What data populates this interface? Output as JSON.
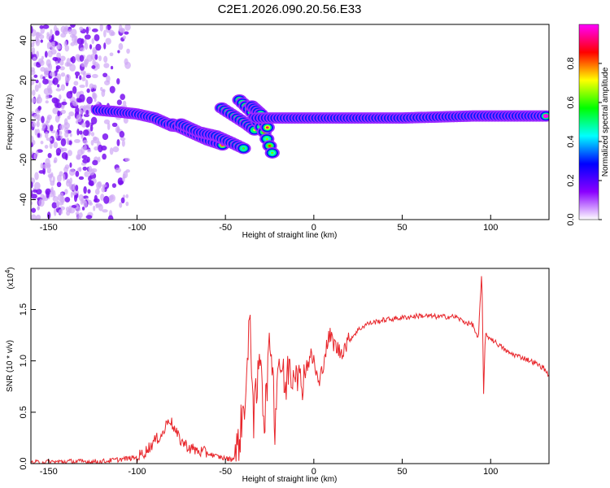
{
  "title": "C2E1.2026.090.20.56.E33",
  "colors": {
    "snr_line": "#e8262b",
    "axis": "#000000",
    "background": "#ffffff"
  },
  "chart_data": [
    {
      "type": "heatmap",
      "name": "spectrogram",
      "xlabel": "Height of straight line (km)",
      "ylabel": "Frequency (Hz)",
      "xlim": [
        -160,
        133
      ],
      "ylim": [
        -50,
        48
      ],
      "x_ticks": [
        -150,
        -100,
        -50,
        0,
        50,
        100
      ],
      "x_tick_labels": [
        "-150",
        "-100",
        "-50",
        "0",
        "50",
        "100"
      ],
      "y_ticks": [
        -40,
        -20,
        0,
        20,
        40
      ],
      "y_tick_labels": [
        "-40",
        "-20",
        "0",
        "20",
        "40"
      ],
      "noise_region_km": [
        -160,
        -105
      ],
      "tracks": [
        {
          "name": "main-echo-left",
          "points": [
            [
              -122,
              5
            ],
            [
              -110,
              4
            ],
            [
              -100,
              3
            ],
            [
              -90,
              1
            ],
            [
              -80,
              -3
            ],
            [
              -70,
              -4
            ]
          ]
        },
        {
          "name": "descending-trail-1",
          "points": [
            [
              -80,
              -2
            ],
            [
              -70,
              -6
            ],
            [
              -60,
              -10
            ],
            [
              -50,
              -13
            ]
          ]
        },
        {
          "name": "descending-trail-2",
          "points": [
            [
              -75,
              -2
            ],
            [
              -65,
              -6
            ],
            [
              -55,
              -8
            ],
            [
              -45,
              -12
            ],
            [
              -38,
              -15
            ]
          ]
        },
        {
          "name": "short-streak-1",
          "points": [
            [
              -52,
              6
            ],
            [
              -45,
              2
            ],
            [
              -38,
              -2
            ],
            [
              -32,
              -6
            ]
          ]
        },
        {
          "name": "short-streak-2",
          "points": [
            [
              -42,
              10
            ],
            [
              -35,
              4
            ],
            [
              -28,
              -6
            ],
            [
              -22,
              -20
            ]
          ]
        },
        {
          "name": "short-streak-3",
          "points": [
            [
              -35,
              7
            ],
            [
              -30,
              3
            ],
            [
              -25,
              -6
            ]
          ]
        },
        {
          "name": "steady-return",
          "points": [
            [
              -32,
              1
            ],
            [
              0,
              1
            ],
            [
              50,
              1
            ],
            [
              90,
              2
            ],
            [
              133,
              2
            ]
          ]
        }
      ],
      "colorbar": {
        "label": "Normalized spectral amplitude",
        "range": [
          0,
          1
        ],
        "ticks": [
          0.0,
          0.2,
          0.4,
          0.6,
          0.8
        ],
        "tick_labels": [
          "0.0",
          "0.2",
          "0.4",
          "0.6",
          "0.8"
        ],
        "colormap": [
          "#ffffff",
          "#8a00ff",
          "#0000ff",
          "#00ffff",
          "#00ff00",
          "#ffff00",
          "#ff0000",
          "#ff00ff"
        ]
      }
    },
    {
      "type": "line",
      "name": "snr",
      "xlabel": "Height of straight line (km)",
      "ylabel": "SNR (10 * v/v)",
      "multiplier_label": "(x10",
      "multiplier_exponent": "4",
      "multiplier_suffix": ")",
      "xlim": [
        -160,
        133
      ],
      "ylim": [
        0,
        1.9
      ],
      "x_ticks": [
        -150,
        -100,
        -50,
        0,
        50,
        100
      ],
      "x_tick_labels": [
        "-150",
        "-100",
        "-50",
        "0",
        "50",
        "100"
      ],
      "y_ticks": [
        0.0,
        0.5,
        1.0,
        1.5
      ],
      "y_tick_labels": [
        "0.0",
        "0.5",
        "1.0",
        "1.5"
      ],
      "series": [
        {
          "name": "SNR",
          "x": [
            -160,
            -140,
            -120,
            -110,
            -100,
            -95,
            -90,
            -85,
            -82,
            -80,
            -78,
            -75,
            -70,
            -65,
            -60,
            -55,
            -50,
            -46,
            -43,
            -40,
            -38,
            -36,
            -34,
            -32,
            -30,
            -28,
            -26,
            -24,
            -22,
            -20,
            -18,
            -16,
            -14,
            -12,
            -10,
            -8,
            -5,
            -2,
            0,
            3,
            6,
            9,
            12,
            15,
            20,
            25,
            30,
            40,
            50,
            60,
            70,
            80,
            85,
            90,
            93,
            95,
            96,
            97,
            100,
            105,
            110,
            115,
            120,
            125,
            130,
            133
          ],
          "y": [
            0.01,
            0.02,
            0.02,
            0.04,
            0.06,
            0.12,
            0.22,
            0.3,
            0.45,
            0.38,
            0.3,
            0.22,
            0.15,
            0.12,
            0.1,
            0.07,
            0.05,
            0.04,
            0.15,
            0.5,
            0.8,
            1.43,
            0.45,
            0.72,
            1.15,
            0.35,
            0.95,
            1.2,
            0.4,
            1.05,
            0.9,
            0.7,
            1.0,
            0.85,
            1.05,
            0.75,
            0.9,
            1.05,
            1.0,
            0.75,
            1.05,
            1.25,
            1.15,
            1.08,
            1.2,
            1.3,
            1.36,
            1.4,
            1.42,
            1.44,
            1.43,
            1.43,
            1.38,
            1.35,
            1.2,
            1.88,
            0.7,
            1.25,
            1.22,
            1.15,
            1.08,
            1.05,
            1.02,
            0.98,
            0.93,
            0.86
          ]
        }
      ]
    }
  ]
}
